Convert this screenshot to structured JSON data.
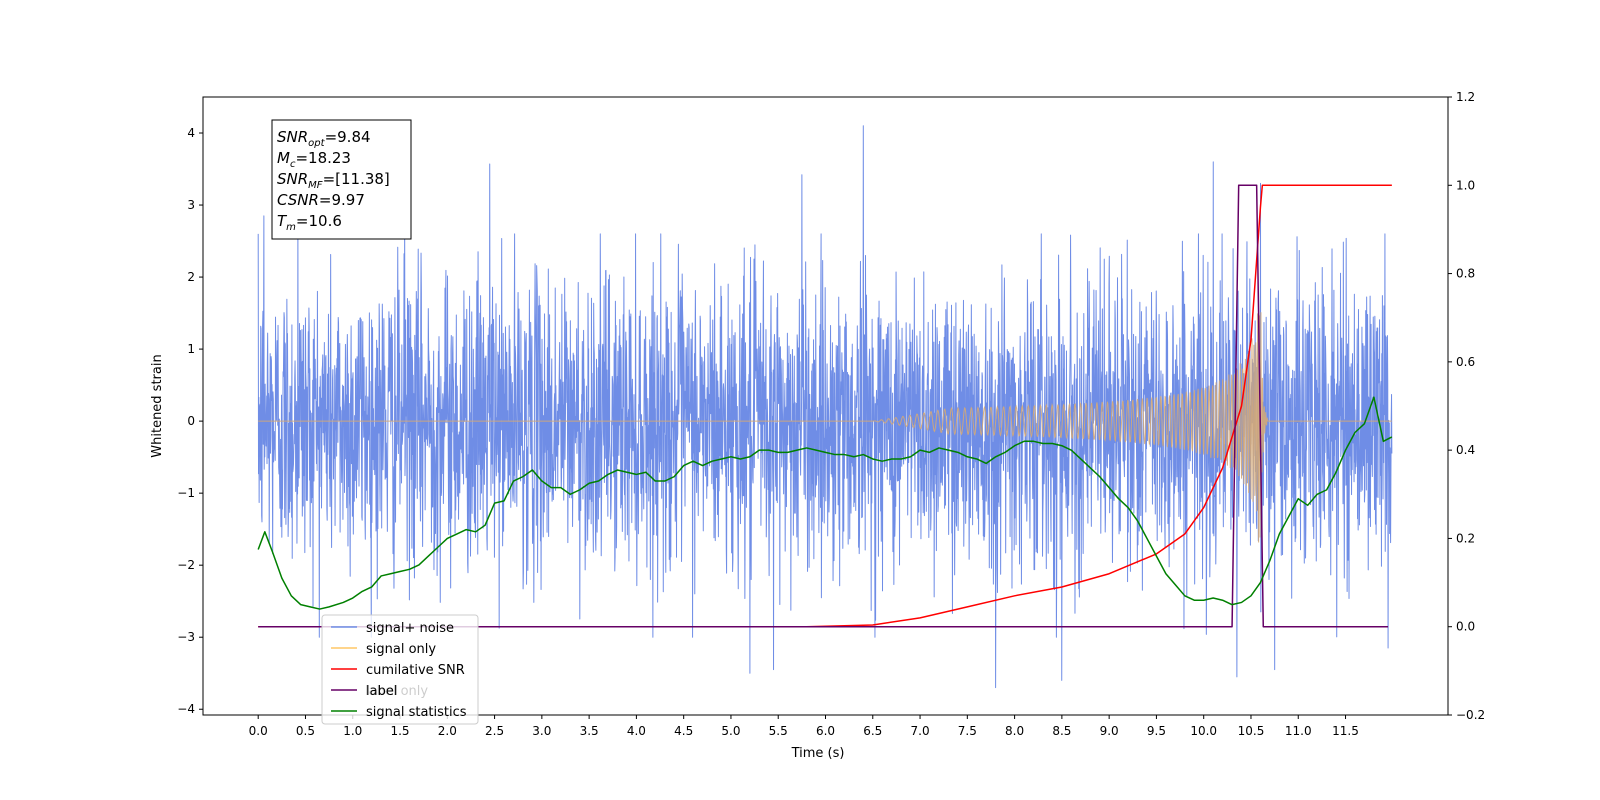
{
  "chart_data": {
    "type": "line",
    "xlabel": "Time (s)",
    "ylabel": "Whitened strain",
    "xlim": [
      -0.5838,
      12.5838
    ],
    "ylim_left": [
      -4.08,
      4.5
    ],
    "ylim_right": [
      -0.2,
      1.2
    ],
    "x_ticks": [
      "0.0",
      "0.5",
      "1.0",
      "1.5",
      "2.0",
      "2.5",
      "3.0",
      "3.5",
      "4.0",
      "4.5",
      "5.0",
      "5.5",
      "6.0",
      "6.5",
      "7.0",
      "7.5",
      "8.0",
      "8.5",
      "9.0",
      "9.5",
      "10.0",
      "10.5",
      "11.0",
      "11.5"
    ],
    "y_ticks_left": [
      "−4",
      "−3",
      "−2",
      "−1",
      "0",
      "1",
      "2",
      "3",
      "4"
    ],
    "y_ticks_right": [
      "−0.2",
      "0.0",
      "0.2",
      "0.4",
      "0.6",
      "0.8",
      "1.0",
      "1.2"
    ],
    "info_box": [
      {
        "base": "SNR",
        "sub": "opt",
        "value": "=9.84"
      },
      {
        "base": "M",
        "sub": "c",
        "value": "=18.23"
      },
      {
        "base": "SNR",
        "sub": "MF",
        "value": "=[11.38]"
      },
      {
        "base": "CSNR",
        "sub": "",
        "value": "=9.97"
      },
      {
        "base": "T",
        "sub": "m",
        "value": "=10.6"
      }
    ],
    "legend": {
      "placement": "lower-left",
      "entries": [
        {
          "label": "signal+ noise",
          "color": "#6f8de6"
        },
        {
          "label": "signal only",
          "color": "#ffc766"
        },
        {
          "label": "cumilative SNR",
          "color": "#ff0000"
        },
        {
          "label": "label",
          "color": "#660066"
        },
        {
          "label": "signal statistics",
          "color": "#008000"
        }
      ],
      "obscured_text": "label only"
    },
    "series": [
      {
        "name": "signal+ noise",
        "axis": "left",
        "color": "#6f8de6",
        "x_start": 0.0,
        "x_end": 11.99,
        "noise_std": 1.0,
        "peaks": [
          [
            0.06,
            2.85
          ],
          [
            0.42,
            2.7
          ],
          [
            1.55,
            2.9
          ],
          [
            2.45,
            3.57
          ],
          [
            5.75,
            3.42
          ],
          [
            6.4,
            4.1
          ],
          [
            10.1,
            3.6
          ],
          [
            10.6,
            3.3
          ]
        ],
        "troughs": [
          [
            5.2,
            -3.5
          ],
          [
            5.45,
            -3.45
          ],
          [
            7.8,
            -3.7
          ],
          [
            8.5,
            -3.6
          ],
          [
            10.35,
            -3.55
          ],
          [
            10.75,
            -3.45
          ],
          [
            11.95,
            -3.15
          ]
        ]
      },
      {
        "name": "signal only",
        "axis": "left",
        "color": "#d4a877",
        "chirp_start": 6.5,
        "merger": 10.6,
        "peak_amplitude": 2.0,
        "ringdown_end": 10.68
      },
      {
        "name": "cumilative SNR",
        "axis": "right",
        "points": [
          [
            0,
            0
          ],
          [
            5.8,
            0
          ],
          [
            6.5,
            0.004
          ],
          [
            7.0,
            0.02
          ],
          [
            7.5,
            0.045
          ],
          [
            8.0,
            0.07
          ],
          [
            8.5,
            0.09
          ],
          [
            9.0,
            0.12
          ],
          [
            9.5,
            0.165
          ],
          [
            9.8,
            0.21
          ],
          [
            10.0,
            0.27
          ],
          [
            10.2,
            0.36
          ],
          [
            10.4,
            0.5
          ],
          [
            10.5,
            0.65
          ],
          [
            10.55,
            0.8
          ],
          [
            10.6,
            0.95
          ],
          [
            10.62,
            1.0
          ],
          [
            11.99,
            1.0
          ]
        ]
      },
      {
        "name": "label",
        "axis": "right",
        "points": [
          [
            0,
            0
          ],
          [
            10.3,
            0
          ],
          [
            10.37,
            1.0
          ],
          [
            10.56,
            1.0
          ],
          [
            10.63,
            0
          ],
          [
            11.95,
            0
          ]
        ]
      },
      {
        "name": "signal statistics",
        "axis": "right",
        "points": [
          [
            0.0,
            0.175
          ],
          [
            0.07,
            0.215
          ],
          [
            0.15,
            0.17
          ],
          [
            0.25,
            0.11
          ],
          [
            0.35,
            0.07
          ],
          [
            0.45,
            0.05
          ],
          [
            0.55,
            0.045
          ],
          [
            0.65,
            0.04
          ],
          [
            0.75,
            0.045
          ],
          [
            0.9,
            0.055
          ],
          [
            1.0,
            0.065
          ],
          [
            1.1,
            0.08
          ],
          [
            1.2,
            0.09
          ],
          [
            1.3,
            0.115
          ],
          [
            1.4,
            0.12
          ],
          [
            1.5,
            0.125
          ],
          [
            1.6,
            0.13
          ],
          [
            1.7,
            0.14
          ],
          [
            1.8,
            0.16
          ],
          [
            1.9,
            0.18
          ],
          [
            2.0,
            0.2
          ],
          [
            2.1,
            0.21
          ],
          [
            2.2,
            0.22
          ],
          [
            2.3,
            0.215
          ],
          [
            2.4,
            0.23
          ],
          [
            2.5,
            0.28
          ],
          [
            2.6,
            0.285
          ],
          [
            2.7,
            0.33
          ],
          [
            2.8,
            0.34
          ],
          [
            2.9,
            0.355
          ],
          [
            3.0,
            0.33
          ],
          [
            3.1,
            0.315
          ],
          [
            3.2,
            0.315
          ],
          [
            3.3,
            0.3
          ],
          [
            3.4,
            0.31
          ],
          [
            3.5,
            0.325
          ],
          [
            3.6,
            0.33
          ],
          [
            3.7,
            0.345
          ],
          [
            3.8,
            0.355
          ],
          [
            3.9,
            0.35
          ],
          [
            4.0,
            0.345
          ],
          [
            4.1,
            0.35
          ],
          [
            4.2,
            0.33
          ],
          [
            4.3,
            0.33
          ],
          [
            4.4,
            0.34
          ],
          [
            4.5,
            0.365
          ],
          [
            4.6,
            0.375
          ],
          [
            4.7,
            0.365
          ],
          [
            4.8,
            0.375
          ],
          [
            4.9,
            0.38
          ],
          [
            5.0,
            0.385
          ],
          [
            5.1,
            0.38
          ],
          [
            5.2,
            0.385
          ],
          [
            5.3,
            0.4
          ],
          [
            5.4,
            0.4
          ],
          [
            5.5,
            0.395
          ],
          [
            5.6,
            0.395
          ],
          [
            5.7,
            0.4
          ],
          [
            5.8,
            0.405
          ],
          [
            5.9,
            0.4
          ],
          [
            6.0,
            0.395
          ],
          [
            6.1,
            0.39
          ],
          [
            6.2,
            0.39
          ],
          [
            6.3,
            0.385
          ],
          [
            6.4,
            0.39
          ],
          [
            6.5,
            0.38
          ],
          [
            6.6,
            0.375
          ],
          [
            6.7,
            0.38
          ],
          [
            6.8,
            0.38
          ],
          [
            6.9,
            0.385
          ],
          [
            7.0,
            0.4
          ],
          [
            7.1,
            0.395
          ],
          [
            7.2,
            0.405
          ],
          [
            7.3,
            0.4
          ],
          [
            7.4,
            0.395
          ],
          [
            7.5,
            0.385
          ],
          [
            7.6,
            0.38
          ],
          [
            7.7,
            0.37
          ],
          [
            7.8,
            0.385
          ],
          [
            7.9,
            0.395
          ],
          [
            8.0,
            0.41
          ],
          [
            8.1,
            0.42
          ],
          [
            8.2,
            0.42
          ],
          [
            8.3,
            0.415
          ],
          [
            8.4,
            0.415
          ],
          [
            8.5,
            0.41
          ],
          [
            8.6,
            0.4
          ],
          [
            8.7,
            0.38
          ],
          [
            8.8,
            0.36
          ],
          [
            8.9,
            0.34
          ],
          [
            9.0,
            0.315
          ],
          [
            9.1,
            0.29
          ],
          [
            9.2,
            0.27
          ],
          [
            9.3,
            0.24
          ],
          [
            9.4,
            0.2
          ],
          [
            9.5,
            0.16
          ],
          [
            9.6,
            0.12
          ],
          [
            9.7,
            0.095
          ],
          [
            9.8,
            0.07
          ],
          [
            9.9,
            0.06
          ],
          [
            10.0,
            0.06
          ],
          [
            10.1,
            0.065
          ],
          [
            10.2,
            0.06
          ],
          [
            10.3,
            0.05
          ],
          [
            10.4,
            0.055
          ],
          [
            10.5,
            0.07
          ],
          [
            10.6,
            0.1
          ],
          [
            10.7,
            0.15
          ],
          [
            10.8,
            0.21
          ],
          [
            10.9,
            0.25
          ],
          [
            11.0,
            0.29
          ],
          [
            11.1,
            0.275
          ],
          [
            11.2,
            0.3
          ],
          [
            11.3,
            0.31
          ],
          [
            11.4,
            0.35
          ],
          [
            11.5,
            0.4
          ],
          [
            11.6,
            0.44
          ],
          [
            11.7,
            0.46
          ],
          [
            11.8,
            0.52
          ],
          [
            11.9,
            0.42
          ],
          [
            11.99,
            0.43
          ]
        ]
      }
    ]
  }
}
